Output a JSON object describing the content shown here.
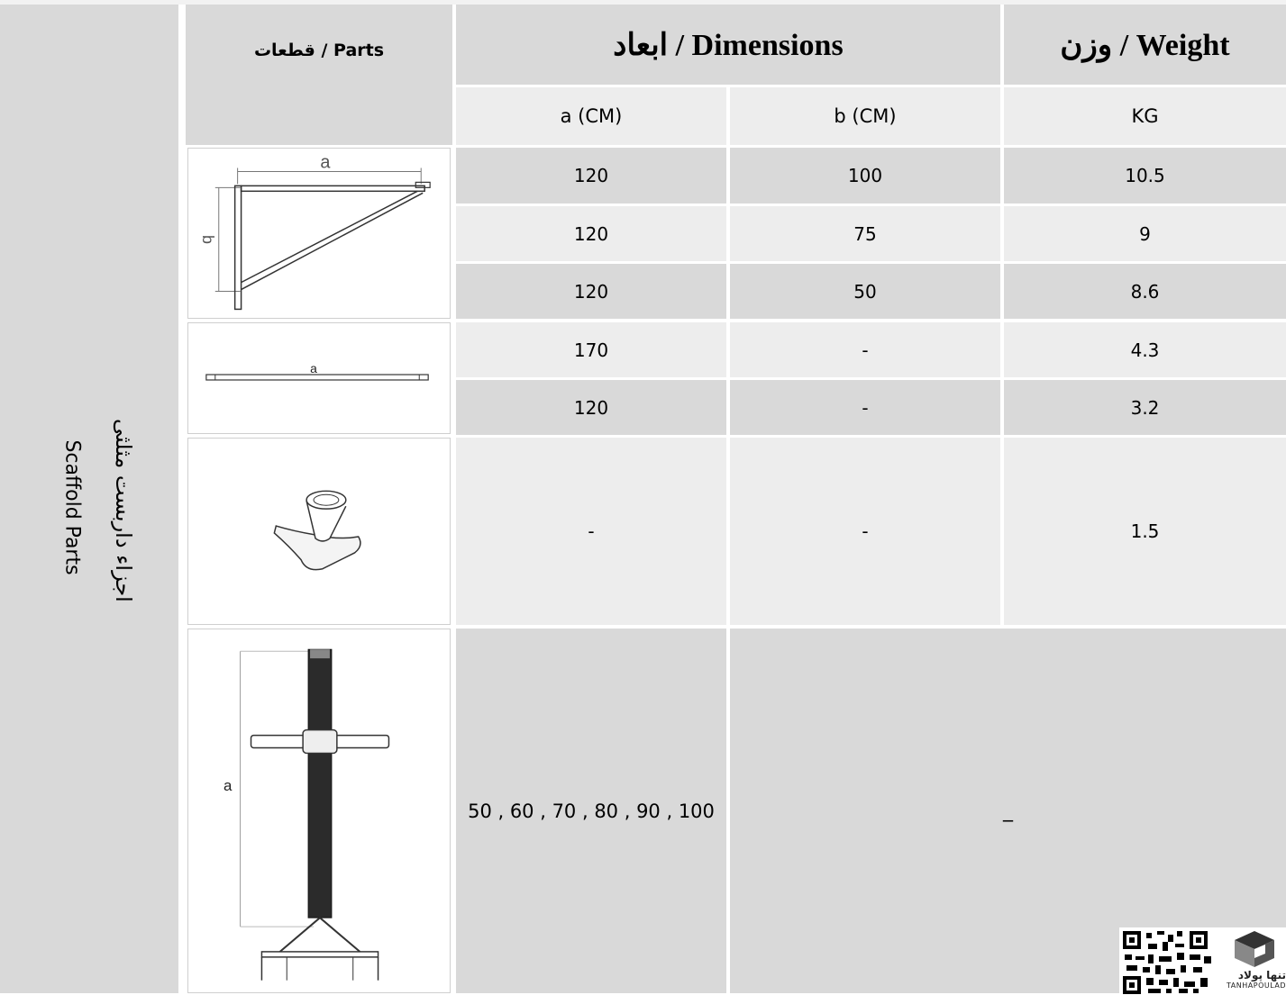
{
  "side_labels": {
    "english": "Scaffold Parts",
    "persian": "اجزاء داربست مثلثی"
  },
  "header": {
    "parts": "قطعات / Parts",
    "dimensions": "ابعاد / Dimensions",
    "weight": "وزن / Weight",
    "col_a": "a (CM)",
    "col_b": "b (CM)",
    "col_kg": "KG"
  },
  "drawing_labels": {
    "bracket_a": "a",
    "bracket_b": "b",
    "ledger_a": "a",
    "jack_a": "a"
  },
  "rows": [
    {
      "a": "120",
      "b": "100",
      "kg": "10.5"
    },
    {
      "a": "120",
      "b": "75",
      "kg": "9"
    },
    {
      "a": "120",
      "b": "50",
      "kg": "8.6"
    },
    {
      "a": "170",
      "b": "-",
      "kg": "4.3"
    },
    {
      "a": "120",
      "b": "-",
      "kg": "3.2"
    },
    {
      "a": "-",
      "b": "-",
      "kg": "1.5"
    },
    {
      "a": "50 , 60 , 70 , 80 , 90 , 100",
      "merged": "_"
    }
  ],
  "logo": {
    "brand_fa": "تنها پولاد",
    "brand_en": "TANHAPOULAD"
  }
}
